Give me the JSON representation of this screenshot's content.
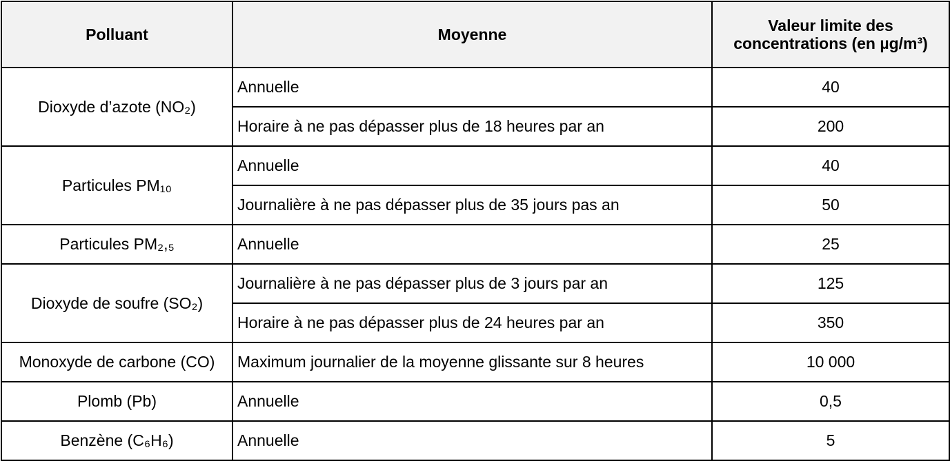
{
  "table": {
    "headers": {
      "pollutant": "Polluant",
      "moyenne": "Moyenne",
      "valeur_line1": "Valeur limite des",
      "valeur_line2": "concentrations (en µg/m³)"
    },
    "groups": [
      {
        "pollutant": "Dioxyde d’azote (NO₂)",
        "rows": [
          {
            "moyenne": "Annuelle",
            "valeur": "40"
          },
          {
            "moyenne": "Horaire à ne pas dépasser plus de 18 heures par an",
            "valeur": "200"
          }
        ]
      },
      {
        "pollutant": "Particules PM₁₀",
        "rows": [
          {
            "moyenne": "Annuelle",
            "valeur": "40"
          },
          {
            "moyenne": "Journalière à ne pas dépasser plus de 35 jours pas an",
            "valeur": "50"
          }
        ]
      },
      {
        "pollutant": "Particules PM₂,₅",
        "rows": [
          {
            "moyenne": "Annuelle",
            "valeur": "25"
          }
        ]
      },
      {
        "pollutant": "Dioxyde de soufre (SO₂)",
        "rows": [
          {
            "moyenne": "Journalière à ne pas dépasser plus de 3 jours par an",
            "valeur": "125"
          },
          {
            "moyenne": "Horaire à ne pas dépasser plus de 24 heures par an",
            "valeur": "350"
          }
        ]
      },
      {
        "pollutant": "Monoxyde de carbone (CO)",
        "rows": [
          {
            "moyenne": "Maximum journalier de la moyenne glissante sur 8 heures",
            "valeur": "10 000"
          }
        ]
      },
      {
        "pollutant": "Plomb (Pb)",
        "rows": [
          {
            "moyenne": "Annuelle",
            "valeur": "0,5"
          }
        ]
      },
      {
        "pollutant": "Benzène (C₆H₆)",
        "rows": [
          {
            "moyenne": "Annuelle",
            "valeur": "5"
          }
        ]
      }
    ]
  }
}
